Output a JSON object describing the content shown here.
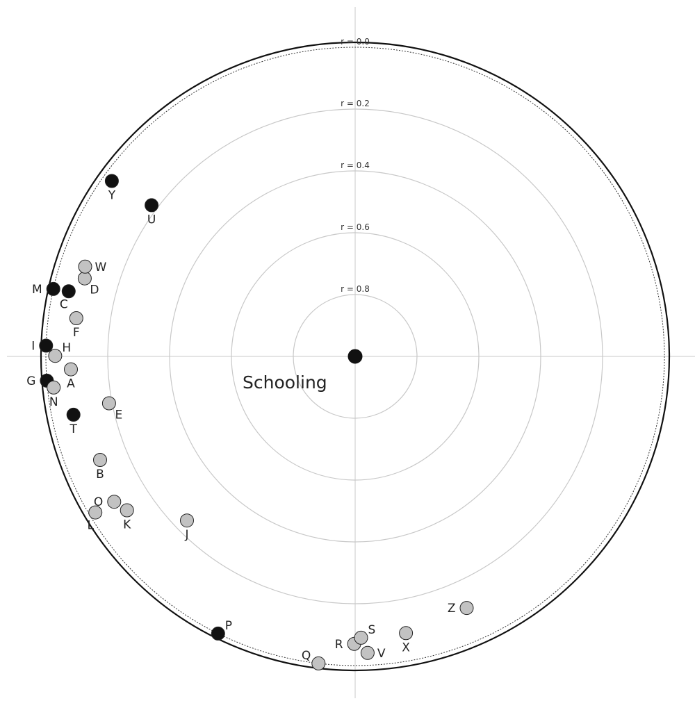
{
  "chart_data": {
    "type": "scatter",
    "projection": "polar",
    "center_label": "Schooling",
    "radial_axis": {
      "ticks": [
        0.0,
        0.2,
        0.4,
        0.6,
        0.8
      ],
      "tick_labels": [
        "r = 0.0",
        "r = 0.2",
        "r = 0.4",
        "r = 0.6",
        "r = 0.8"
      ],
      "range": [
        0,
        1
      ]
    },
    "grid": true,
    "colors": {
      "filled": "#111111",
      "hollow": "#c2c2c2",
      "grid": "#c8c8c8"
    },
    "center_point": {
      "r": 1.0,
      "fill": "black"
    },
    "points": [
      {
        "label": "A",
        "angle_deg": 182.6,
        "r": 0.08,
        "fill": "gray",
        "label_pos": "below"
      },
      {
        "label": "B",
        "angle_deg": 202.1,
        "r": 0.11,
        "fill": "gray",
        "label_pos": "below"
      },
      {
        "label": "C",
        "angle_deg": 167.2,
        "r": 0.05,
        "fill": "black",
        "label_pos": "below-left"
      },
      {
        "label": "D",
        "angle_deg": 163.9,
        "r": 0.09,
        "fill": "gray",
        "label_pos": "below-right"
      },
      {
        "label": "E",
        "angle_deg": 190.8,
        "r": 0.19,
        "fill": "gray",
        "label_pos": "below-right"
      },
      {
        "label": "F",
        "angle_deg": 172.2,
        "r": 0.09,
        "fill": "gray",
        "label_pos": "below"
      },
      {
        "label": "G",
        "angle_deg": 184.5,
        "r": 0.0,
        "fill": "black",
        "label_pos": "left"
      },
      {
        "label": "H",
        "angle_deg": 179.9,
        "r": 0.03,
        "fill": "gray",
        "label_pos": "upper-right"
      },
      {
        "label": "I",
        "angle_deg": 178.0,
        "r": 0.0,
        "fill": "black",
        "label_pos": "left"
      },
      {
        "label": "J",
        "angle_deg": 224.3,
        "r": 0.24,
        "fill": "gray",
        "label_pos": "below"
      },
      {
        "label": "K",
        "angle_deg": 214.0,
        "r": 0.11,
        "fill": "gray",
        "label_pos": "below"
      },
      {
        "label": "L",
        "angle_deg": 211.0,
        "r": 0.02,
        "fill": "gray",
        "label_pos": "below-left"
      },
      {
        "label": "M",
        "angle_deg": 167.4,
        "r": 0.0,
        "fill": "black",
        "label_pos": "left"
      },
      {
        "label": "N",
        "angle_deg": 185.9,
        "r": 0.02,
        "fill": "gray",
        "label_pos": "below"
      },
      {
        "label": "O",
        "angle_deg": 211.1,
        "r": 0.09,
        "fill": "gray",
        "label_pos": "left"
      },
      {
        "label": "P",
        "angle_deg": 243.7,
        "r": 0.0,
        "fill": "black",
        "label_pos": "upper-right"
      },
      {
        "label": "Q",
        "angle_deg": 263.2,
        "r": 0.0,
        "fill": "gray",
        "label_pos": "upper-left"
      },
      {
        "label": "R",
        "angle_deg": 269.8,
        "r": 0.07,
        "fill": "gray",
        "label_pos": "left"
      },
      {
        "label": "S",
        "angle_deg": 271.2,
        "r": 0.09,
        "fill": "gray",
        "label_pos": "upper-right"
      },
      {
        "label": "T",
        "angle_deg": 191.7,
        "r": 0.07,
        "fill": "black",
        "label_pos": "below"
      },
      {
        "label": "U",
        "angle_deg": 143.4,
        "r": 0.18,
        "fill": "black",
        "label_pos": "below"
      },
      {
        "label": "V",
        "angle_deg": 272.4,
        "r": 0.04,
        "fill": "gray",
        "label_pos": "right"
      },
      {
        "label": "W",
        "angle_deg": 161.6,
        "r": 0.08,
        "fill": "gray",
        "label_pos": "right"
      },
      {
        "label": "X",
        "angle_deg": 280.4,
        "r": 0.09,
        "fill": "gray",
        "label_pos": "below"
      },
      {
        "label": "Y",
        "angle_deg": 144.2,
        "r": 0.03,
        "fill": "black",
        "label_pos": "below"
      },
      {
        "label": "Z",
        "angle_deg": 293.9,
        "r": 0.11,
        "fill": "gray",
        "label_pos": "left"
      }
    ]
  }
}
